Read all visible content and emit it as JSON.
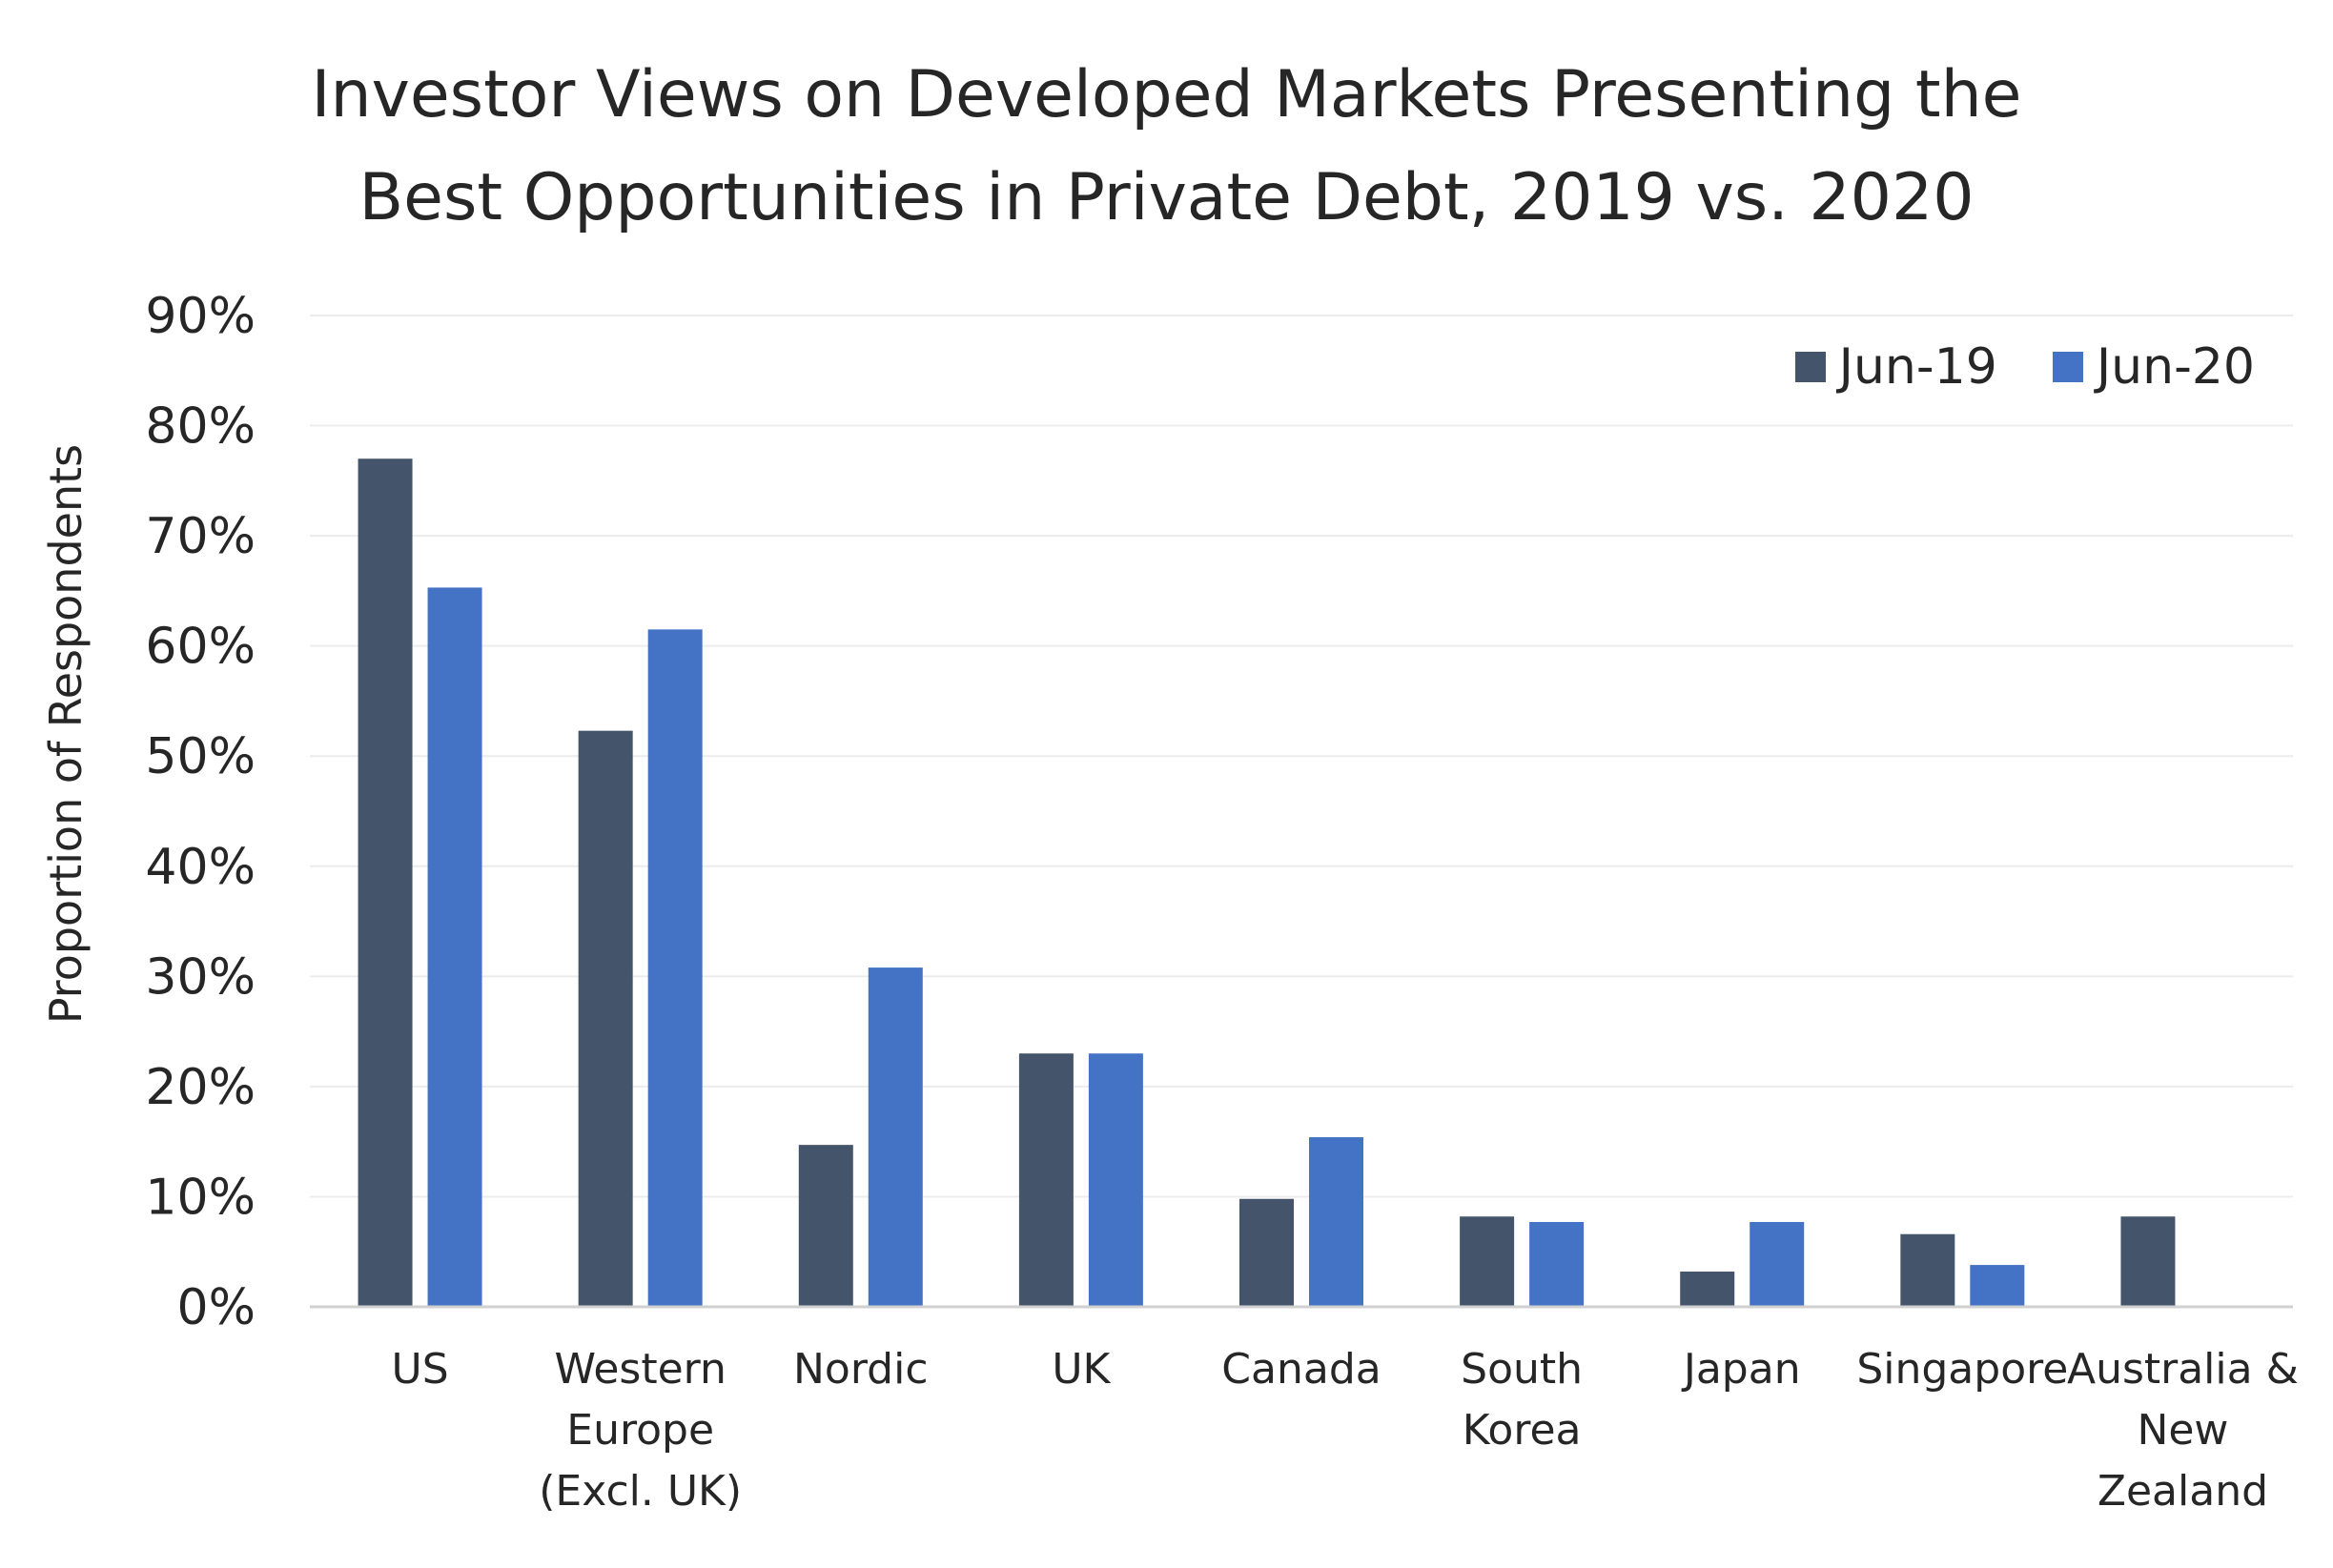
{
  "chart_data": {
    "type": "bar",
    "title_lines": [
      "Investor Views on Developed Markets Presenting the",
      "Best Opportunities in Private Debt, 2019 vs. 2020"
    ],
    "ylabel": "Proportion of Respondents",
    "xlabel": "",
    "ylim": [
      0,
      90
    ],
    "yticks": [
      "0%",
      "10%",
      "20%",
      "30%",
      "40%",
      "50%",
      "60%",
      "70%",
      "80%",
      "90%"
    ],
    "grid": true,
    "legend_position": "top-right",
    "categories": [
      [
        "US"
      ],
      [
        "Western",
        "Europe",
        "(Excl. UK)"
      ],
      [
        "Nordic"
      ],
      [
        "UK"
      ],
      [
        "Canada"
      ],
      [
        "South",
        "Korea"
      ],
      [
        "Japan"
      ],
      [
        "Singapore"
      ],
      [
        "Australia &",
        "New",
        "Zealand"
      ]
    ],
    "series": [
      {
        "name": "Jun-19",
        "color": "#44546a",
        "values": [
          77,
          52.3,
          14.7,
          23,
          9.8,
          8.2,
          3.2,
          6.6,
          8.2
        ]
      },
      {
        "name": "Jun-20",
        "color": "#4472c4",
        "values": [
          65.3,
          61.5,
          30.8,
          23,
          15.4,
          7.7,
          7.7,
          3.8,
          0
        ]
      }
    ]
  }
}
